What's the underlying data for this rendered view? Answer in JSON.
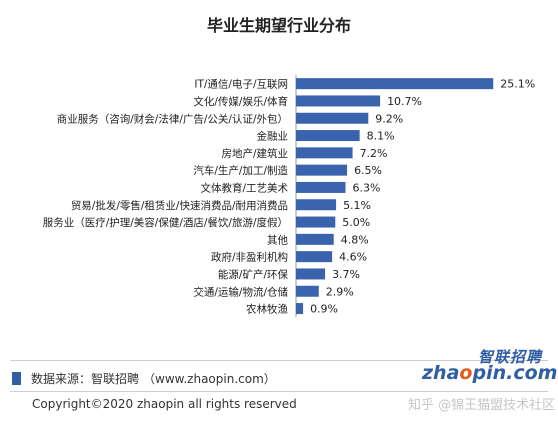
{
  "chart_data": {
    "type": "bar",
    "orientation": "horizontal",
    "title": "毕业生期望行业分布",
    "categories": [
      "IT/通信/电子/互联网",
      "文化/传媒/娱乐/体育",
      "商业服务（咨询/财会/法律/广告/公关/认证/外包）",
      "金融业",
      "房地产/建筑业",
      "汽车/生产/加工/制造",
      "文体教育/工艺美术",
      "贸易/批发/零售/租赁业/快速消费品/耐用消费品",
      "服务业（医疗/护理/美容/保健/酒店/餐饮/旅游/度假）",
      "其他",
      "政府/非盈利机构",
      "能源/矿产/环保",
      "交通/运输/物流/仓储",
      "农林牧渔"
    ],
    "values": [
      25.1,
      10.7,
      9.2,
      8.1,
      7.2,
      6.5,
      6.3,
      5.1,
      5.0,
      4.8,
      4.6,
      3.7,
      2.9,
      0.9
    ],
    "value_labels": [
      "25.1%",
      "10.7%",
      "9.2%",
      "8.1%",
      "7.2%",
      "6.5%",
      "6.3%",
      "5.1%",
      "5.0%",
      "4.8%",
      "4.6%",
      "3.7%",
      "2.9%",
      "0.9%"
    ],
    "xlim": [
      0,
      28
    ],
    "bar_color": "#3a63ad",
    "grid": false,
    "legend": "none"
  },
  "footer": {
    "source_label": "数据来源：智联招聘",
    "source_url": "（www.zhaopin.com）",
    "copyright": "Copyright©2020 zhaopin all rights reserved",
    "accent_color": "#2f5ea5"
  },
  "logo": {
    "cn": "智联招聘",
    "en_prefix": "zha",
    "en_o": "o",
    "en_suffix": "pin.com"
  },
  "watermark": "知乎 @锦王猫盟技术社区"
}
